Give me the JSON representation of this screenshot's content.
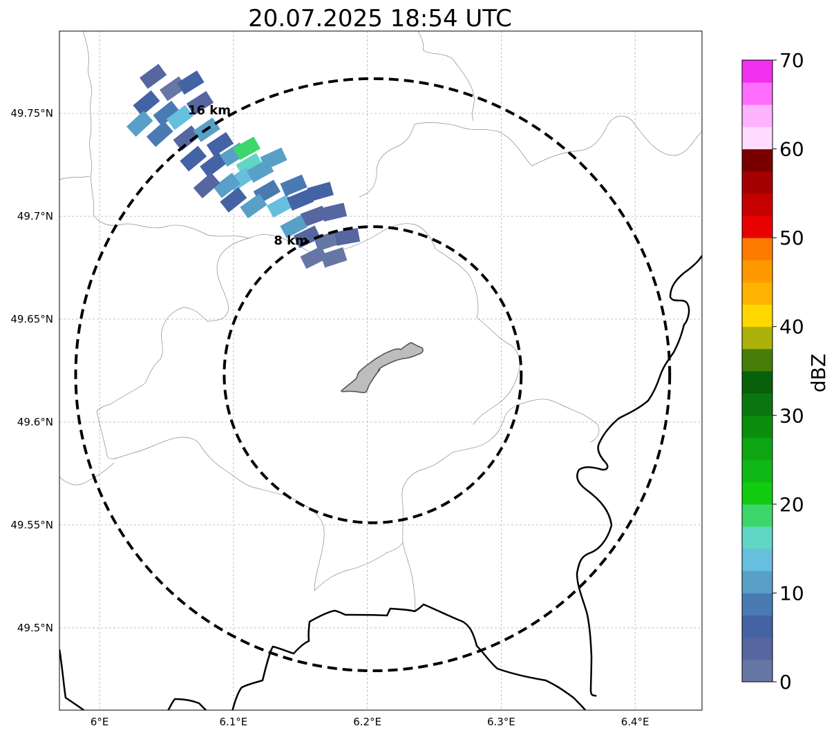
{
  "title": "20.07.2025 18:54 UTC",
  "map": {
    "lon_range": [
      5.97,
      6.45
    ],
    "lat_range": [
      49.46,
      49.79
    ],
    "lon_ticks": [
      {
        "value": 6.0,
        "label": "6°E"
      },
      {
        "value": 6.1,
        "label": "6.1°E"
      },
      {
        "value": 6.2,
        "label": "6.2°E"
      },
      {
        "value": 6.3,
        "label": "6.3°E"
      },
      {
        "value": 6.4,
        "label": "6.4°E"
      }
    ],
    "lat_ticks": [
      {
        "value": 49.5,
        "label": "49.5°N"
      },
      {
        "value": 49.55,
        "label": "49.55°N"
      },
      {
        "value": 49.6,
        "label": "49.6°N"
      },
      {
        "value": 49.65,
        "label": "49.65°N"
      },
      {
        "value": 49.7,
        "label": "49.7°N"
      },
      {
        "value": 49.75,
        "label": "49.75°N"
      }
    ],
    "grid": true,
    "center": {
      "lon": 6.204,
      "lat": 49.623
    },
    "range_rings": [
      {
        "radius_km": 8,
        "label": "8 km"
      },
      {
        "radius_km": 16,
        "label": "16 km"
      }
    ],
    "city_fill": "#bdbdbd",
    "border_color": "#000000"
  },
  "colorbar": {
    "label": "dBZ",
    "min": 0,
    "max": 70,
    "ticks": [
      {
        "value": 0,
        "label": "0"
      },
      {
        "value": 10,
        "label": "10"
      },
      {
        "value": 20,
        "label": "20"
      },
      {
        "value": 30,
        "label": "30"
      },
      {
        "value": 40,
        "label": "40"
      },
      {
        "value": 50,
        "label": "50"
      },
      {
        "value": 60,
        "label": "60"
      },
      {
        "value": 70,
        "label": "70"
      }
    ],
    "colors": [
      "#6677a6",
      "#5566a0",
      "#4463a4",
      "#4a7ab2",
      "#58a0c8",
      "#65bfdd",
      "#62d6c4",
      "#3dd66b",
      "#11cc11",
      "#10b816",
      "#0ea512",
      "#0b8d0e",
      "#0a7610",
      "#075f0a",
      "#467c08",
      "#abb109",
      "#ffd800",
      "#ffb300",
      "#ff9900",
      "#ff7b00",
      "#e80000",
      "#c60000",
      "#a40000",
      "#7a0000",
      "#ffdcff",
      "#ffb3ff",
      "#ff6dff",
      "#f230f0"
    ]
  },
  "reflectivity_cells": [
    {
      "lon": 6.04,
      "lat": 49.768,
      "dbz": 3
    },
    {
      "lon": 6.055,
      "lat": 49.762,
      "dbz": 2
    },
    {
      "lon": 6.068,
      "lat": 49.765,
      "dbz": 6
    },
    {
      "lon": 6.075,
      "lat": 49.755,
      "dbz": 3
    },
    {
      "lon": 6.035,
      "lat": 49.755,
      "dbz": 5
    },
    {
      "lon": 6.05,
      "lat": 49.75,
      "dbz": 9
    },
    {
      "lon": 6.06,
      "lat": 49.748,
      "dbz": 13
    },
    {
      "lon": 6.03,
      "lat": 49.745,
      "dbz": 11
    },
    {
      "lon": 6.045,
      "lat": 49.74,
      "dbz": 8
    },
    {
      "lon": 6.065,
      "lat": 49.738,
      "dbz": 4
    },
    {
      "lon": 6.08,
      "lat": 49.742,
      "dbz": 10
    },
    {
      "lon": 6.09,
      "lat": 49.735,
      "dbz": 7
    },
    {
      "lon": 6.07,
      "lat": 49.728,
      "dbz": 5
    },
    {
      "lon": 6.085,
      "lat": 49.725,
      "dbz": 6
    },
    {
      "lon": 6.1,
      "lat": 49.73,
      "dbz": 12
    },
    {
      "lon": 6.11,
      "lat": 49.733,
      "dbz": 19
    },
    {
      "lon": 6.112,
      "lat": 49.725,
      "dbz": 17
    },
    {
      "lon": 6.105,
      "lat": 49.718,
      "dbz": 14
    },
    {
      "lon": 6.095,
      "lat": 49.715,
      "dbz": 12
    },
    {
      "lon": 6.12,
      "lat": 49.722,
      "dbz": 11
    },
    {
      "lon": 6.13,
      "lat": 49.728,
      "dbz": 10
    },
    {
      "lon": 6.125,
      "lat": 49.712,
      "dbz": 9
    },
    {
      "lon": 6.115,
      "lat": 49.705,
      "dbz": 11
    },
    {
      "lon": 6.135,
      "lat": 49.705,
      "dbz": 13
    },
    {
      "lon": 6.145,
      "lat": 49.715,
      "dbz": 8
    },
    {
      "lon": 6.15,
      "lat": 49.708,
      "dbz": 5
    },
    {
      "lon": 6.16,
      "lat": 49.7,
      "dbz": 4
    },
    {
      "lon": 6.165,
      "lat": 49.712,
      "dbz": 6
    },
    {
      "lon": 6.175,
      "lat": 49.702,
      "dbz": 3
    },
    {
      "lon": 6.145,
      "lat": 49.695,
      "dbz": 10
    },
    {
      "lon": 6.155,
      "lat": 49.69,
      "dbz": 3
    },
    {
      "lon": 6.17,
      "lat": 49.688,
      "dbz": 2
    },
    {
      "lon": 6.185,
      "lat": 49.69,
      "dbz": 3
    },
    {
      "lon": 6.16,
      "lat": 49.68,
      "dbz": 1
    },
    {
      "lon": 6.175,
      "lat": 49.68,
      "dbz": 2
    },
    {
      "lon": 6.1,
      "lat": 49.708,
      "dbz": 5
    },
    {
      "lon": 6.08,
      "lat": 49.715,
      "dbz": 4
    }
  ]
}
